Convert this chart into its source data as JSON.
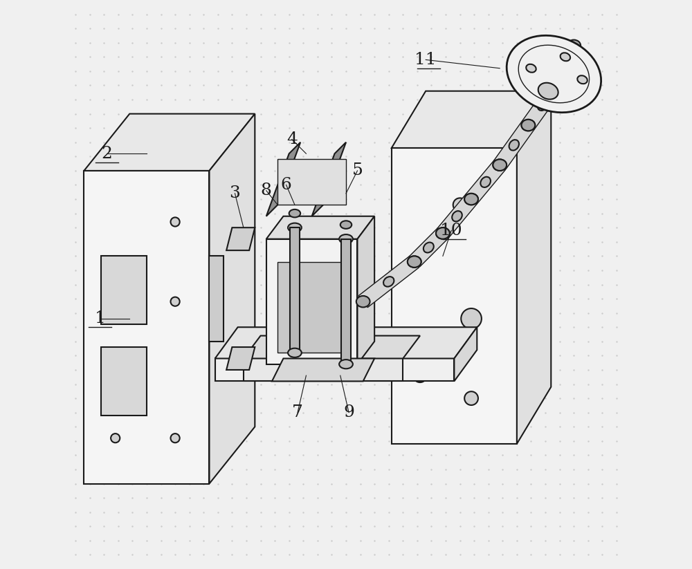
{
  "background_color": "#f0f0f0",
  "dot_color": "#cccccc",
  "line_color": "#1a1a1a",
  "figsize": [
    10.0,
    8.23
  ],
  "dpi": 100,
  "label_fontsize": 18,
  "label_color": "#1a1a1a"
}
